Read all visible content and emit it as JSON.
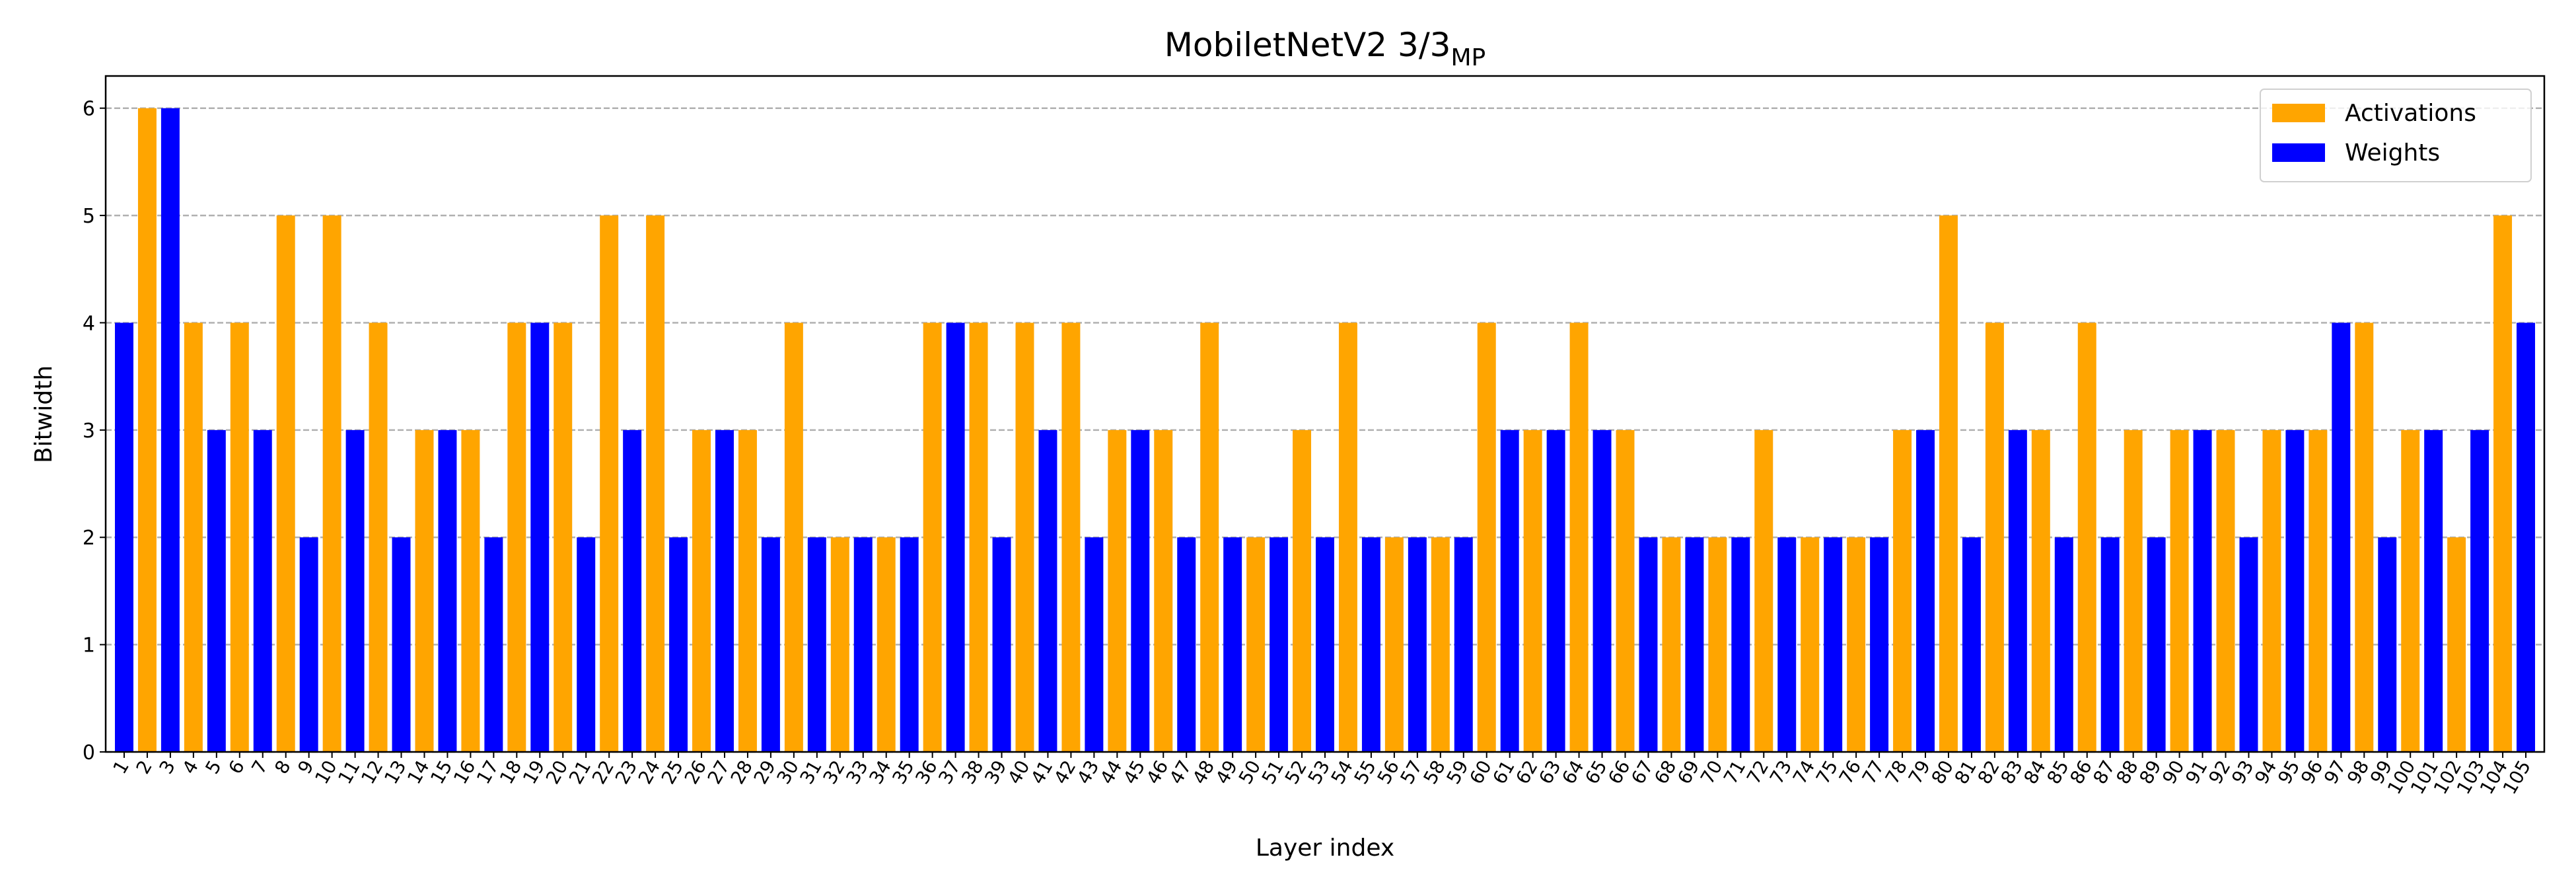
{
  "chart_data": {
    "type": "bar",
    "title": "MobiletNetV2 3/3",
    "title_subscript": "MP",
    "x_label": "Layer index",
    "y_label": "Bitwidth",
    "categories": [
      1,
      2,
      3,
      4,
      5,
      6,
      7,
      8,
      9,
      10,
      11,
      12,
      13,
      14,
      15,
      16,
      17,
      18,
      19,
      20,
      21,
      22,
      23,
      24,
      25,
      26,
      27,
      28,
      29,
      30,
      31,
      32,
      33,
      34,
      35,
      36,
      37,
      38,
      39,
      40,
      41,
      42,
      43,
      44,
      45,
      46,
      47,
      48,
      49,
      50,
      51,
      52,
      53,
      54,
      55,
      56,
      57,
      58,
      59,
      60,
      61,
      62,
      63,
      64,
      65,
      66,
      67,
      68,
      69,
      70,
      71,
      72,
      73,
      74,
      75,
      76,
      77,
      78,
      79,
      80,
      81,
      82,
      83,
      84,
      85,
      86,
      87,
      88,
      89,
      90,
      91,
      92,
      93,
      94,
      95,
      96,
      97,
      98,
      99,
      100,
      101,
      102,
      103,
      104,
      105
    ],
    "series": [
      {
        "name": "Activations",
        "color": "#ffa500",
        "values": [
          null,
          6,
          null,
          4,
          null,
          4,
          null,
          5,
          null,
          5,
          null,
          4,
          null,
          3,
          null,
          3,
          null,
          4,
          null,
          4,
          null,
          5,
          null,
          5,
          null,
          3,
          null,
          3,
          null,
          4,
          null,
          2,
          null,
          2,
          null,
          4,
          null,
          4,
          null,
          4,
          null,
          4,
          null,
          3,
          null,
          3,
          null,
          4,
          null,
          2,
          null,
          3,
          null,
          4,
          null,
          2,
          null,
          2,
          null,
          4,
          null,
          3,
          null,
          4,
          null,
          3,
          null,
          2,
          null,
          2,
          null,
          3,
          null,
          2,
          null,
          2,
          null,
          3,
          null,
          5,
          null,
          4,
          null,
          3,
          null,
          4,
          null,
          3,
          null,
          3,
          null,
          3,
          null,
          3,
          null,
          3,
          null,
          4,
          null,
          3,
          null,
          2,
          null,
          5,
          null
        ]
      },
      {
        "name": "Weights",
        "color": "#0000ff",
        "values": [
          4,
          null,
          6,
          null,
          3,
          null,
          3,
          null,
          2,
          null,
          3,
          null,
          2,
          null,
          3,
          null,
          2,
          null,
          4,
          null,
          2,
          null,
          3,
          null,
          2,
          null,
          3,
          null,
          2,
          null,
          2,
          null,
          2,
          null,
          2,
          null,
          4,
          null,
          2,
          null,
          3,
          null,
          2,
          null,
          3,
          null,
          2,
          null,
          2,
          null,
          2,
          null,
          2,
          null,
          2,
          null,
          2,
          null,
          2,
          null,
          3,
          null,
          3,
          null,
          3,
          null,
          2,
          null,
          2,
          null,
          2,
          null,
          2,
          null,
          2,
          null,
          2,
          null,
          3,
          null,
          2,
          null,
          3,
          null,
          2,
          null,
          2,
          null,
          2,
          null,
          3,
          null,
          2,
          null,
          3,
          null,
          4,
          null,
          2,
          null,
          3,
          null,
          3,
          null,
          4
        ]
      }
    ],
    "ylim": [
      0,
      6.3
    ],
    "yticks": [
      0,
      1,
      2,
      3,
      4,
      5,
      6
    ],
    "grid": true,
    "legend": "upper right"
  }
}
